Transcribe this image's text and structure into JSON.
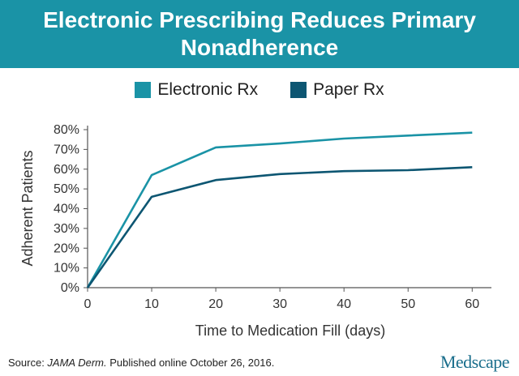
{
  "header": {
    "title": "Electronic Prescribing Reduces Primary Nonadherence"
  },
  "colors": {
    "banner": "#1a93a6",
    "electronic": "#1a93a6",
    "paper": "#0d5672"
  },
  "chart_data": {
    "type": "line",
    "title": "Electronic Prescribing Reduces Primary Nonadherence",
    "xlabel": "Time to Medication Fill (days)",
    "ylabel": "Adherent Patients",
    "xlim": [
      0,
      63
    ],
    "ylim": [
      0,
      80
    ],
    "x_ticks": [
      0,
      10,
      20,
      30,
      40,
      50,
      60
    ],
    "y_ticks": [
      0,
      10,
      20,
      30,
      40,
      50,
      60,
      70,
      80
    ],
    "y_tick_labels": [
      "0%",
      "10%",
      "20%",
      "30%",
      "40%",
      "50%",
      "60%",
      "70%",
      "80%"
    ],
    "grid": false,
    "legend_position": "top",
    "series": [
      {
        "name": "Electronic Rx",
        "color": "#1a93a6",
        "x": [
          0,
          10,
          20,
          30,
          40,
          50,
          60
        ],
        "y": [
          0,
          57,
          71,
          73,
          75.5,
          77,
          78.5
        ]
      },
      {
        "name": "Paper Rx",
        "color": "#0d5672",
        "x": [
          0,
          10,
          20,
          30,
          40,
          50,
          60
        ],
        "y": [
          0,
          46,
          54.5,
          57.5,
          59,
          59.5,
          61
        ]
      }
    ]
  },
  "footer": {
    "source_prefix": "Source: ",
    "source_journal": "JAMA Derm.",
    "source_rest": " Published online October 26, 2016.",
    "logo": "Medscape"
  }
}
